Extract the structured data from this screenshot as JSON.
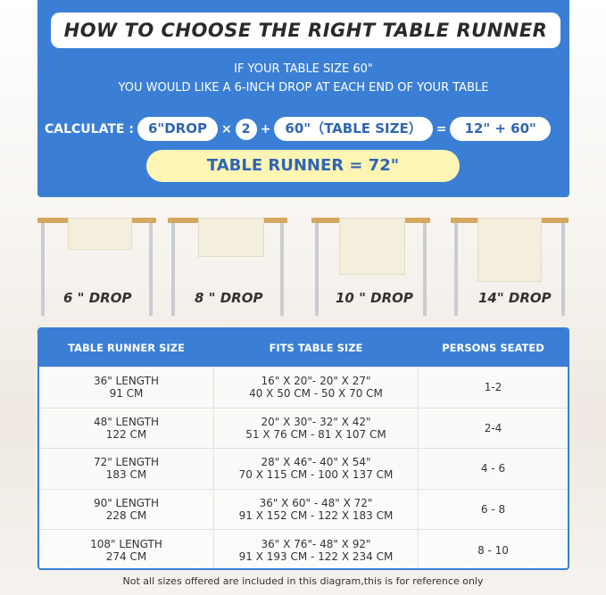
{
  "title": "HOW TO CHOOSE THE RIGHT TABLE RUNNER",
  "subtitle1": "IF YOUR TABLE SIZE 60\"",
  "subtitle2": "YOU WOULD LIKE A 6-INCH DROP AT EACH END OF YOUR TABLE",
  "calc": {
    "label": "CALCULATE :",
    "drop": "6\"DROP",
    "times": "×",
    "two": "2",
    "plus": "+",
    "table": "60\"（TABLE SIZE）",
    "eq": "=",
    "sum": "12\" + 60\"",
    "result": "TABLE RUNNER = 72\""
  },
  "drops": [
    "6 \" DROP",
    "8 \" DROP",
    "10 \" DROP",
    "14\" DROP"
  ],
  "table": {
    "headers": [
      "TABLE RUNNER SIZE",
      "FITS TABLE SIZE",
      "PERSONS SEATED"
    ],
    "rows": [
      {
        "len": "36\" LENGTH",
        "cm": "91 CM",
        "fit1": "16\" X 20\"- 20\" X 27\"",
        "fit2": "40 X 50 CM - 50 X 70 CM",
        "persons": "1-2"
      },
      {
        "len": "48\" LENGTH",
        "cm": "122 CM",
        "fit1": "20\" X 30\"- 32\" X 42\"",
        "fit2": "51 X 76 CM - 81 X 107 CM",
        "persons": "2-4"
      },
      {
        "len": "72\" LENGTH",
        "cm": "183 CM",
        "fit1": "28\" X 46\"- 40\" X 54\"",
        "fit2": "70 X 115 CM - 100 X 137 CM",
        "persons": "4 - 6"
      },
      {
        "len": "90\" LENGTH",
        "cm": "228 CM",
        "fit1": "36\" X 60\" - 48\" X 72\"",
        "fit2": "91 X 152 CM - 122 X 183 CM",
        "persons": "6 - 8"
      },
      {
        "len": "108\" LENGTH",
        "cm": "274 CM",
        "fit1": "36\" X 76\"- 48\" X 92\"",
        "fit2": "91 X 193 CM - 122 X 234 CM",
        "persons": "8 - 10"
      }
    ]
  },
  "footnote": "Not all sizes offered are included in this diagram,this is for reference only",
  "colors": {
    "blue": "#3a7fd5",
    "yellow": "#fdf5b3",
    "wood": "#d4a860"
  }
}
